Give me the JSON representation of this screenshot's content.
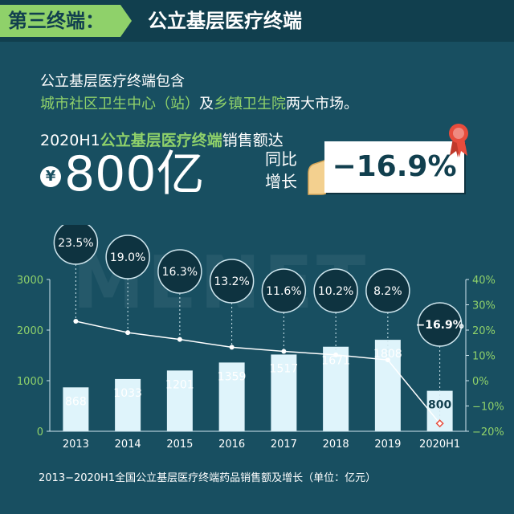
{
  "header": {
    "section_tag": "第三终端：",
    "title": "公立基层医疗终端"
  },
  "intro": {
    "line1": "公立基层医疗终端包含",
    "market1": "城市社区卫生中心（站）",
    "connector": "及",
    "market2": "乡镇卫生院",
    "suffix": "两大市场。"
  },
  "sales": {
    "prefix": "2020H1",
    "highlight": "公立基层医疗终端",
    "suffix": "销售额达",
    "currency_symbol": "¥",
    "amount": "800亿",
    "yoy_label_1": "同比",
    "yoy_label_2": "增长",
    "yoy_value": "−16.9%"
  },
  "watermark": "MENET",
  "chart_data": {
    "type": "bar",
    "categories": [
      "2013",
      "2014",
      "2015",
      "2016",
      "2017",
      "2018",
      "2019",
      "2020H1"
    ],
    "series": [
      {
        "values": [
          868,
          1033,
          1201,
          1359,
          1517,
          1671,
          1808,
          800
        ],
        "labels": [
          "868",
          "1033",
          "1201",
          "1359",
          "1517",
          "1671",
          "1808",
          "800"
        ]
      },
      {
        "type": "line",
        "values": [
          23.5,
          19.0,
          16.3,
          13.2,
          11.6,
          10.2,
          8.2,
          -16.9
        ],
        "labels": [
          "23.5%",
          "19.0%",
          "16.3%",
          "13.2%",
          "11.6%",
          "10.2%",
          "8.2%",
          "−16.9%"
        ]
      }
    ],
    "ylim": [
      0,
      3000
    ],
    "y_ticks": [
      "0",
      "1000",
      "2000",
      "3000"
    ],
    "y2lim": [
      -20,
      40
    ],
    "y2_ticks": [
      "−20%",
      "−10%",
      "0%",
      "10%",
      "20%",
      "30%",
      "40%"
    ],
    "title": "2013−2020H1全国公立基层医疗终端药品销售额及增长（单位：亿元）"
  },
  "colors": {
    "background": "#184f61",
    "accent": "#8fd16a",
    "bar": "#dff4fb",
    "circle": "#0e3340"
  }
}
